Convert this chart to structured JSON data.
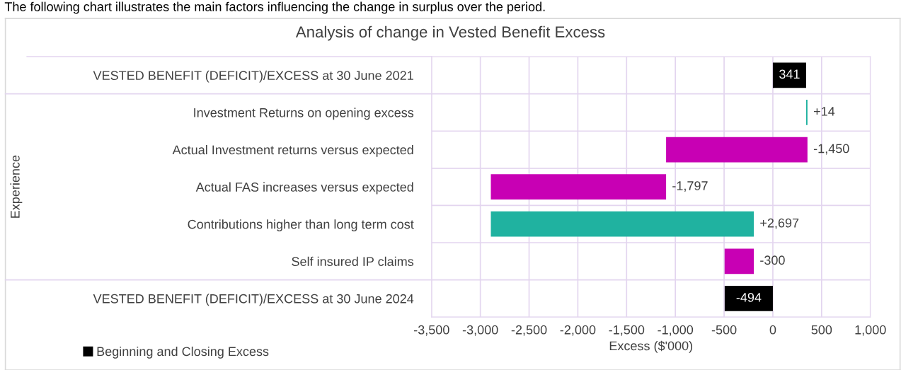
{
  "chart_data": {
    "type": "bar",
    "orientation": "horizontal",
    "title": "Analysis of change in Vested Benefit Excess",
    "xlabel": "Excess ($'000)",
    "annotations": [
      "The following chart illustrates the main factors influencing the change in surplus over the period.",
      "Experience"
    ],
    "categories": [
      "VESTED BENEFIT (DEFICIT)/EXCESS at 30 June 2021",
      "Investment Returns on opening excess",
      "Actual Investment returns versus expected",
      "Actual FAS increases versus expected",
      "Contributions higher than long term cost",
      "Self insured IP claims",
      "VESTED BENEFIT (DEFICIT)/EXCESS at 30 June 2024"
    ],
    "series": [
      {
        "name": "Beginning and Closing Excess",
        "color": "#000000",
        "base": [
          0,
          null,
          null,
          null,
          null,
          null,
          0
        ],
        "values": [
          341,
          null,
          null,
          null,
          null,
          null,
          -494
        ],
        "value_labels": [
          "341",
          null,
          null,
          null,
          null,
          null,
          "-494"
        ]
      },
      {
        "colors": [
          null,
          "#20b2a0",
          "#c800b4",
          "#c800b4",
          "#20b2a0",
          "#c800b4",
          null
        ],
        "base": [
          null,
          341,
          355,
          -1095,
          -2892,
          -195,
          null
        ],
        "values": [
          null,
          14,
          -1450,
          -1797,
          2697,
          -300,
          null
        ],
        "value_labels": [
          null,
          "+14",
          "-1,450",
          "-1,797",
          "+2,697",
          "-300",
          null
        ]
      }
    ],
    "xlim": [
      -3500,
      1000
    ],
    "xticks": [
      {
        "value": -3500,
        "label": "-3,500"
      },
      {
        "value": -3000,
        "label": "-3,000"
      },
      {
        "value": -2500,
        "label": "-2,500"
      },
      {
        "value": -2000,
        "label": "-2,000"
      },
      {
        "value": -1500,
        "label": "-1,500"
      },
      {
        "value": -1000,
        "label": "-1,000"
      },
      {
        "value": -500,
        "label": "-500"
      },
      0,
      500,
      {
        "value": 1000,
        "label": "1,000"
      }
    ],
    "grid": true,
    "legend": "bottom left"
  }
}
